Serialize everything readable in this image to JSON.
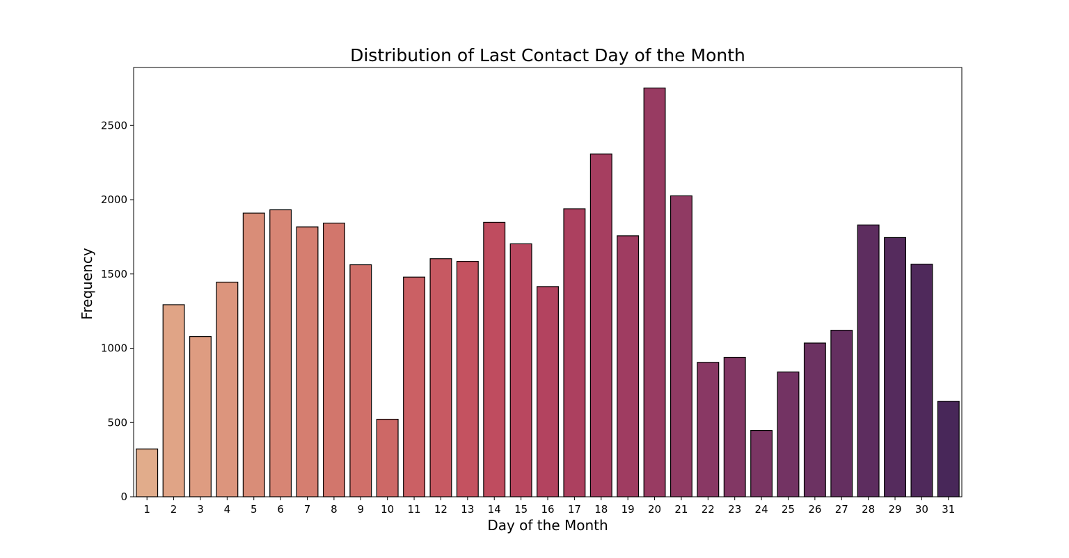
{
  "chart_data": {
    "type": "bar",
    "title": "Distribution of Last Contact Day of the Month",
    "xlabel": "Day of the Month",
    "ylabel": "Frequency",
    "categories": [
      "1",
      "2",
      "3",
      "4",
      "5",
      "6",
      "7",
      "8",
      "9",
      "10",
      "11",
      "12",
      "13",
      "14",
      "15",
      "16",
      "17",
      "18",
      "19",
      "20",
      "21",
      "22",
      "23",
      "24",
      "25",
      "26",
      "27",
      "28",
      "29",
      "30",
      "31"
    ],
    "values": [
      322,
      1293,
      1079,
      1445,
      1910,
      1932,
      1817,
      1842,
      1562,
      522,
      1479,
      1603,
      1585,
      1848,
      1703,
      1415,
      1939,
      2308,
      1757,
      2752,
      2026,
      905,
      939,
      447,
      840,
      1035,
      1121,
      1830,
      1745,
      1566,
      643
    ],
    "ylim": [
      0,
      2890
    ],
    "yticks": [
      0,
      500,
      1000,
      1500,
      2000,
      2500
    ],
    "grid": false,
    "legend": "none",
    "palette": "flare",
    "colors": [
      "#e1ac8b",
      "#e0a486",
      "#de9c81",
      "#dc957d",
      "#d98d78",
      "#d78574",
      "#d57e70",
      "#d2766c",
      "#d06f69",
      "#cd6866",
      "#cb6064",
      "#c75962",
      "#c45260",
      "#bf4c5f",
      "#b9475f",
      "#b3435f",
      "#ac405f",
      "#a63e60",
      "#9f3c61",
      "#983b62",
      "#903a63",
      "#893864",
      "#823764",
      "#7a3563",
      "#733363",
      "#6c3262",
      "#642f60",
      "#5d2d5f",
      "#552b5d",
      "#4f295b",
      "#482759"
    ],
    "edge_color": "#000000"
  }
}
